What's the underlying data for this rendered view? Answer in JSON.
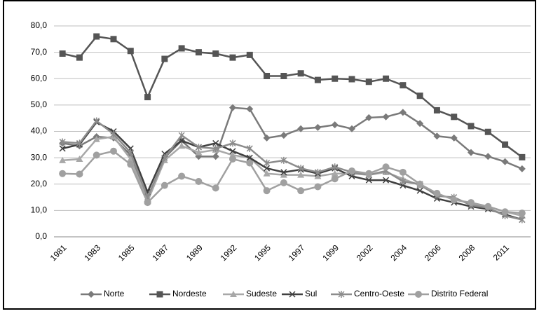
{
  "chart_data": {
    "type": "line",
    "categories": [
      "1981",
      null,
      "1983",
      null,
      "1985",
      null,
      "1987",
      null,
      "1989",
      null,
      "1992",
      null,
      "1995",
      null,
      "1997",
      null,
      "1999",
      null,
      "2002",
      null,
      "2004",
      null,
      "2006",
      null,
      "2008",
      null,
      "2011",
      null
    ],
    "series": [
      {
        "name": "Norte",
        "color": "#7a7a7a",
        "marker": "diamond",
        "values": [
          35.5,
          34.5,
          38,
          37.5,
          31,
          13.5,
          30,
          36.5,
          30.5,
          30.5,
          49,
          48.5,
          37.5,
          38.5,
          41,
          41.5,
          42.5,
          41,
          45.2,
          45.5,
          47.2,
          43,
          38.2,
          37.5,
          32,
          30.5,
          28.5,
          25.8
        ]
      },
      {
        "name": "Nordeste",
        "color": "#555555",
        "marker": "square",
        "values": [
          69.5,
          68,
          76,
          75,
          70.5,
          53,
          67.5,
          71.5,
          70,
          69.5,
          68,
          69,
          61,
          61,
          62,
          59.5,
          60,
          59.8,
          58.8,
          60,
          57.5,
          53.5,
          48,
          45.5,
          42,
          39.8,
          35,
          30.2
        ]
      },
      {
        "name": "Sudeste",
        "color": "#a8a8a8",
        "marker": "triangle",
        "values": [
          29,
          29.5,
          37,
          38,
          29.5,
          13.5,
          29,
          34.5,
          32,
          33,
          31,
          30,
          24,
          23.5,
          23.5,
          23,
          24,
          24,
          23.5,
          24.5,
          22,
          19.5,
          16,
          14.5,
          12.5,
          11.5,
          9.5,
          8
        ]
      },
      {
        "name": "Sul",
        "color": "#404040",
        "marker": "x",
        "values": [
          33.5,
          35,
          43.5,
          40,
          33.5,
          17,
          31.5,
          36.5,
          34,
          35.5,
          32.5,
          30,
          26,
          24.5,
          25.5,
          24,
          26,
          23,
          21.5,
          21.5,
          19.5,
          17.5,
          14.5,
          13,
          11.5,
          10.5,
          8.5,
          6.5
        ]
      },
      {
        "name": "Centro-Oeste",
        "color": "#8c8c8c",
        "marker": "star",
        "values": [
          36,
          35.5,
          44,
          39,
          32,
          15,
          30,
          38.5,
          34,
          33.5,
          35.5,
          33.5,
          28,
          29,
          26,
          24.5,
          26.5,
          24.5,
          23.5,
          25,
          21,
          20,
          15.5,
          15,
          12,
          11,
          8,
          6.5
        ]
      },
      {
        "name": "Distrito Federal",
        "color": "#a0a0a0",
        "marker": "circle",
        "values": [
          24,
          23.8,
          31,
          32.5,
          27.5,
          13,
          19.5,
          23,
          21,
          18.5,
          29.5,
          28,
          17.5,
          20.5,
          17.5,
          19,
          22,
          25,
          24,
          26.5,
          24.5,
          20,
          16.5,
          14,
          13,
          11.5,
          9.5,
          9
        ]
      }
    ],
    "ylim": [
      0,
      80
    ],
    "yticks": [
      {
        "value": 0,
        "label": "0,0"
      },
      {
        "value": 10,
        "label": "10,0"
      },
      {
        "value": 20,
        "label": "20,0"
      },
      {
        "value": 30,
        "label": "30,0"
      },
      {
        "value": 40,
        "label": "40,0"
      },
      {
        "value": 50,
        "label": "50,0"
      },
      {
        "value": 60,
        "label": "60,0"
      },
      {
        "value": 70,
        "label": "70,0"
      },
      {
        "value": 80,
        "label": "80,0"
      }
    ],
    "grid": true,
    "legend": "bottom"
  }
}
